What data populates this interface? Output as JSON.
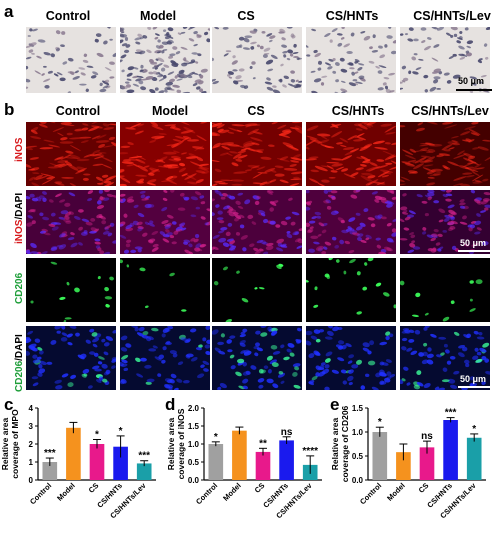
{
  "panels": {
    "a": "a",
    "b": "b",
    "c": "c",
    "d": "d",
    "e": "e"
  },
  "groups": [
    "Control",
    "Model",
    "CS",
    "CS/HNTs",
    "CS/HNTs/Lev"
  ],
  "scale_label": "50 μm",
  "row_labels": {
    "inos": "iNOS",
    "inos_dapi_a": "iNOS",
    "inos_dapi_b": "/DAPI",
    "cd206": "CD206",
    "cd206_dapi_a": "CD206",
    "cd206_dapi_b": "/DAPI"
  },
  "colors": {
    "control": "#a0a0a0",
    "model": "#f5921e",
    "cs": "#e8198b",
    "cs_hnts": "#1a1aee",
    "cs_hnts_lev": "#1a9fa8",
    "inos_label": "#d7191c",
    "cd206_label": "#1f9e3a"
  },
  "chart_data": [
    {
      "type": "bar",
      "panel": "c",
      "categories": [
        "Control",
        "Model",
        "CS",
        "CS/HNTs",
        "CS/HNTs/Lev"
      ],
      "values": [
        1.0,
        2.9,
        2.0,
        1.85,
        0.92
      ],
      "errors": [
        0.22,
        0.3,
        0.25,
        0.6,
        0.15
      ],
      "significance": [
        "***",
        "",
        "*",
        "*",
        "***"
      ],
      "ylabel_line1": "Relative area",
      "ylabel_line2": "coverage of MPO",
      "ylim": [
        0,
        4
      ],
      "yticks": [
        0,
        1,
        2,
        3,
        4
      ]
    },
    {
      "type": "bar",
      "panel": "d",
      "categories": [
        "Control",
        "Model",
        "CS",
        "CS/HNTs",
        "CS/HNTs/Lev"
      ],
      "values": [
        1.0,
        1.37,
        0.78,
        1.1,
        0.42
      ],
      "errors": [
        0.06,
        0.1,
        0.1,
        0.1,
        0.25
      ],
      "significance": [
        "*",
        "",
        "**",
        "ns",
        "****"
      ],
      "ylabel_line1": "Relative area",
      "ylabel_line2": "coverage of iNOS",
      "ylim": [
        0,
        2.0
      ],
      "yticks": [
        0.0,
        0.5,
        1.0,
        1.5,
        2.0
      ]
    },
    {
      "type": "bar",
      "panel": "e",
      "categories": [
        "Control",
        "Model",
        "CS",
        "CS/HNTs",
        "CS/HNTs/Lev"
      ],
      "values": [
        1.0,
        0.58,
        0.68,
        1.25,
        0.88
      ],
      "errors": [
        0.1,
        0.17,
        0.13,
        0.05,
        0.08
      ],
      "significance": [
        "*",
        "",
        "ns",
        "***",
        "*"
      ],
      "ylabel_line1": "Relative area",
      "ylabel_line2": "coverage of CD206",
      "ylim": [
        0,
        1.5
      ],
      "yticks": [
        0.0,
        0.5,
        1.0,
        1.5
      ]
    }
  ]
}
